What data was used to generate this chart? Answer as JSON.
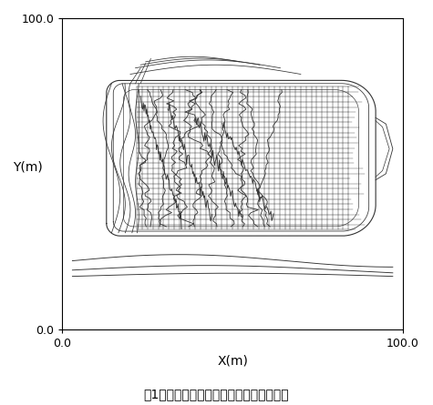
{
  "title_caption": "図1　精密地形データとメッシュ発生位置",
  "xlabel": "X(m)",
  "ylabel": "Y(m)",
  "xlim": [
    0.0,
    100.0
  ],
  "ylim": [
    0.0,
    100.0
  ],
  "xticks": [
    0.0,
    100.0
  ],
  "yticks": [
    0.0,
    100.0
  ],
  "background_color": "#ffffff",
  "line_color": "#333333",
  "mesh_color": "#222222",
  "mesh_x_start": 22,
  "mesh_x_end": 84,
  "mesh_y_start": 32,
  "mesh_y_end": 78,
  "mesh_nx": 40,
  "mesh_ny": 28,
  "figsize": [
    4.75,
    4.45
  ],
  "dpi": 100
}
